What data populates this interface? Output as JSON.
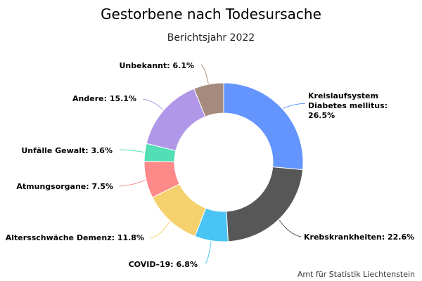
{
  "chart_data": {
    "type": "pie",
    "variant": "donut",
    "title": "Gestorbene nach Todesursache",
    "subtitle": "Berichtsjahr 2022",
    "credit": "Amt für Statistik Liechtenstein",
    "slices": [
      {
        "label": "Kreislaufsystem Diabetes mellitus: 26.5%",
        "name": "Kreislaufsystem Diabetes mellitus",
        "value": 26.5,
        "color": "#6494fe"
      },
      {
        "label": "Krebskrankheiten: 22.6%",
        "name": "Krebskrankheiten",
        "value": 22.6,
        "color": "#575757"
      },
      {
        "label": "COVID–19: 6.8%",
        "name": "COVID–19",
        "value": 6.8,
        "color": "#4ac4f4"
      },
      {
        "label": "Altersschwäche Demenz: 11.8%",
        "name": "Altersschwäche Demenz",
        "value": 11.8,
        "color": "#f5d16d"
      },
      {
        "label": "Atmungsorgane: 7.5%",
        "name": "Atmungsorgane",
        "value": 7.5,
        "color": "#fd8a89"
      },
      {
        "label": "Unfälle Gewalt: 3.6%",
        "name": "Unfälle Gewalt",
        "value": 3.6,
        "color": "#52dfb5"
      },
      {
        "label": "Andere: 15.1%",
        "name": "Andere",
        "value": 15.1,
        "color": "#b097e8"
      },
      {
        "label": "Unbekannt: 6.1%",
        "name": "Unbekannt",
        "value": 6.1,
        "color": "#a58a7d"
      }
    ]
  }
}
